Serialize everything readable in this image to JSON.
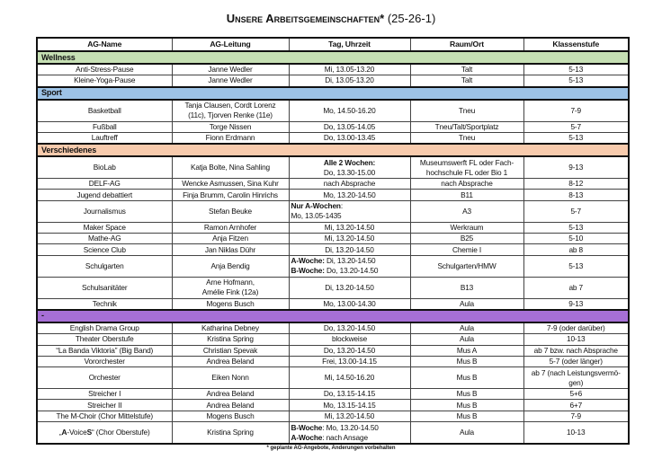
{
  "title": {
    "main": "Unsere Arbeitsgemeinschaften*",
    "suffix": " (25-26-1)"
  },
  "columns": [
    "AG-Name",
    "AG-Leitung",
    "Tag, Uhrzeit",
    "Raum/Ort",
    "Klassenstufe"
  ],
  "colors": {
    "Wellness": "#c6e0b4",
    "Sport": "#9dc3e6",
    "Verschiedenes": "#f8cbad",
    "-": "#a66fd6"
  },
  "sections": [
    {
      "name": "Wellness",
      "rows": [
        [
          "Anti-Stress-Pause",
          "Janne Wedler",
          "Mi, 13.05-13.20",
          "Talt",
          "5-13"
        ],
        [
          "Kleine-Yoga-Pause",
          "Janne Wedler",
          "Di, 13.05-13.20",
          "Talt",
          "5-13"
        ]
      ]
    },
    {
      "name": "Sport",
      "rows": [
        [
          "Basketball",
          [
            [
              {
                "t": "Tanja Clausen, Cordt Lorenz"
              }
            ],
            [
              {
                "t": "(11c), Tjorven Renke (11e)"
              }
            ]
          ],
          "Mo, 14.50-16.20",
          "Tneu",
          "7-9"
        ],
        [
          "Fußball",
          "Torge Nissen",
          "Do, 13.05-14.05",
          "Tneu/Talt/Sportplatz",
          "5-7"
        ],
        [
          "Lauftreff",
          "Fionn Erdmann",
          "Do, 13.00-13.45",
          "Tneu",
          "5-13"
        ]
      ]
    },
    {
      "name": "Verschiedenes",
      "rows": [
        [
          "BioLab",
          "Katja Bolte, Nina Sahling",
          [
            [
              {
                "t": "Alle 2 Wochen:",
                "b": true
              }
            ],
            [
              {
                "t": "Do, 13.30-15.00"
              }
            ]
          ],
          [
            [
              {
                "t": "Museumswerft FL oder Fach-"
              }
            ],
            [
              {
                "t": "hochschule FL oder Bio 1"
              }
            ]
          ],
          "9-13"
        ],
        [
          "DELF-AG",
          "Wencke Asmussen, Sina Kuhr",
          "nach Absprache",
          "nach Absprache",
          "8-12"
        ],
        [
          "Jugend debattiert",
          "Finja Brumm, Carolin Hinrichs",
          "Mo, 13.20-14.50",
          "B11",
          "8-13"
        ],
        [
          "Journalismus",
          "Stefan Beuke",
          [
            [
              {
                "t": "Nur A-Wochen",
                "b": true
              },
              {
                "t": ":"
              }
            ],
            [
              {
                "t": "Mo, 13.05-1435"
              }
            ]
          ],
          "A3",
          "5-7"
        ],
        [
          "Maker Space",
          "Ramon Arnhofer",
          "Mi, 13.20-14.50",
          "Werkraum",
          "5-13"
        ],
        [
          "Mathe-AG",
          "Anja Fitzen",
          "Mi, 13.20-14.50",
          "B25",
          "5-10"
        ],
        [
          "Science Club",
          "Jan Niklas Dühr",
          "Di, 13.20-14.50",
          "Chemie I",
          "ab 8"
        ],
        [
          "Schulgarten",
          "Anja Bendig",
          [
            [
              {
                "t": "A-Woche:",
                "b": true
              },
              {
                "t": " Di, 13.20-14.50"
              }
            ],
            [
              {
                "t": "B-Woche:",
                "b": true
              },
              {
                "t": " Do, 13.20-14.50"
              }
            ]
          ],
          "Schulgarten/HMW",
          "5-13"
        ],
        [
          "Schulsanitäter",
          [
            [
              {
                "t": "Arne Hofmann,"
              }
            ],
            [
              {
                "t": "Amélie Fink (12a)"
              }
            ]
          ],
          "Di, 13.20-14.50",
          "B13",
          "ab 7"
        ],
        [
          "Technik",
          "Mogens Busch",
          "Mo, 13.00-14.30",
          "Aula",
          "9-13"
        ]
      ]
    },
    {
      "name": "-",
      "rows": [
        [
          "English Drama Group",
          "Katharina Debney",
          "Do, 13.20-14.50",
          "Aula",
          "7-9 (oder darüber)"
        ],
        [
          "Theater Oberstufe",
          "Kristina Spring",
          "blockweise",
          "Aula",
          "10-13"
        ],
        [
          "“La Banda Viktoria” (Big Band)",
          "Christian Spevak",
          "Do, 13.20-14.50",
          "Mus A",
          "ab 7 bzw. nach Absprache"
        ],
        [
          "Vororchester",
          "Andrea Beland",
          "Frei, 13.00-14.15",
          "Mus B",
          "5-7 (oder länger)"
        ],
        [
          "Orchester",
          "Eiken Nonn",
          "Mi, 14.50-16.20",
          "Mus B",
          [
            [
              {
                "t": "ab 7 (nach Leistungsvermö-"
              }
            ],
            [
              {
                "t": "gen)"
              }
            ]
          ]
        ],
        [
          "Streicher I",
          "Andrea Beland",
          "Do, 13.15-14.15",
          "Mus B",
          "5+6"
        ],
        [
          "Streicher II",
          "Andrea Beland",
          "Mo, 13.15-14.15",
          "Mus B",
          "6+7"
        ],
        [
          "The M-Choir (Chor Mittelstufe)",
          "Mogens Busch",
          "Mi, 13.20-14.50",
          "Mus B",
          "7-9"
        ],
        [
          [
            [
              {
                "t": "„"
              },
              {
                "t": "A",
                "b": true
              },
              {
                "t": "-Voice"
              },
              {
                "t": "S",
                "b": true
              },
              {
                "t": "“ (Chor Oberstufe)"
              }
            ]
          ],
          "Kristina Spring",
          [
            [
              {
                "t": "B-Woche",
                "b": true
              },
              {
                "t": ": Mo, 13.20-14.50"
              }
            ],
            [
              {
                "t": "A-Woche",
                "b": true
              },
              {
                "t": ": nach Ansage"
              }
            ]
          ],
          "Aula",
          "10-13"
        ]
      ]
    }
  ],
  "footnote": "* geplante AG-Angebote, Änderungen vorbehalten"
}
